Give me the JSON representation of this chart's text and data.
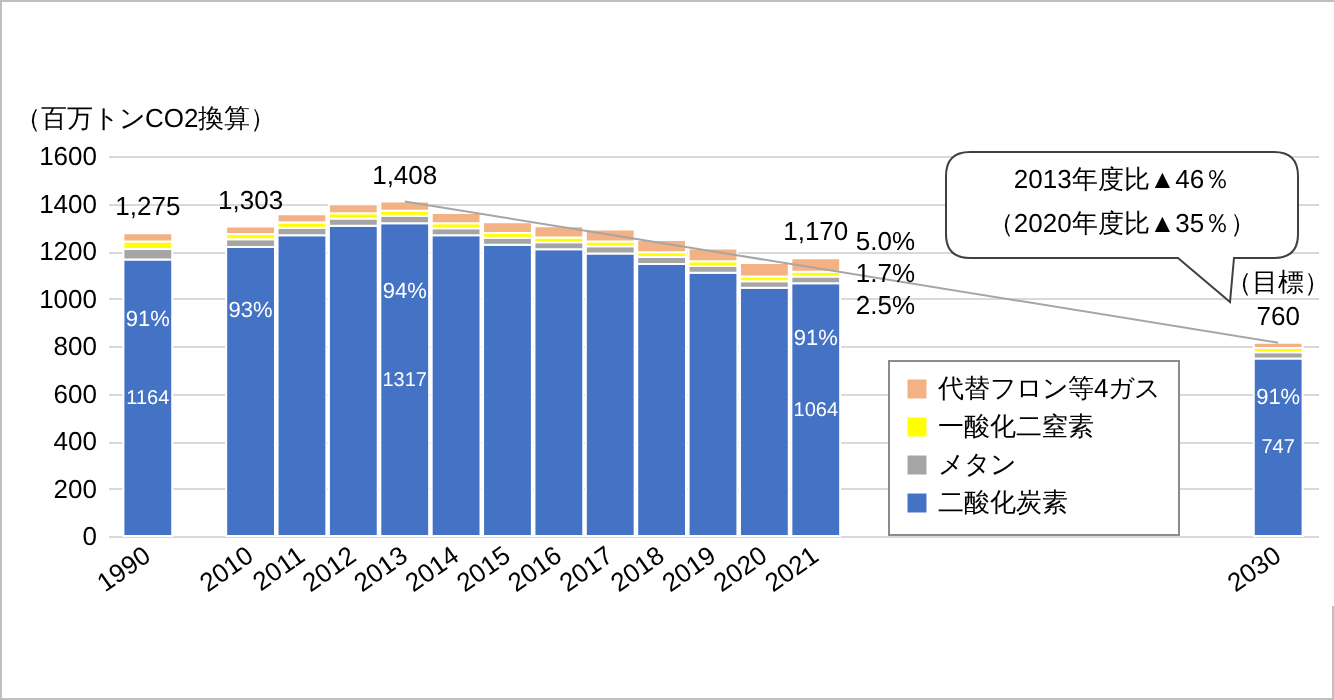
{
  "chart_data": {
    "type": "bar",
    "stacked": true,
    "ylabel": "（百万トンCO2換算）",
    "categories": [
      "1990",
      null,
      "2010",
      "2011",
      "2012",
      "2013",
      "2014",
      "2015",
      "2016",
      "2017",
      "2018",
      "2019",
      "2020",
      "2021",
      null,
      null,
      null,
      null,
      null,
      null,
      null,
      null,
      "2030"
    ],
    "series": [
      {
        "name": "二酸化炭素",
        "color": "#4472c4",
        "values": [
          1164,
          null,
          1217,
          1266,
          1306,
          1317,
          1266,
          1226,
          1207,
          1190,
          1145,
          1108,
          1045,
          1064,
          null,
          null,
          null,
          null,
          null,
          null,
          null,
          null,
          747
        ],
        "value_labels": [
          "1164",
          null,
          null,
          null,
          null,
          "1317",
          null,
          null,
          null,
          null,
          null,
          null,
          null,
          "1064",
          null,
          null,
          null,
          null,
          null,
          null,
          null,
          null,
          "747"
        ]
      },
      {
        "name": "メタン",
        "color": "#a5a5a5",
        "values": [
          44,
          null,
          33,
          32,
          31,
          31,
          30,
          30,
          30,
          30,
          30,
          29,
          28,
          29,
          null,
          null,
          null,
          null,
          null,
          null,
          null,
          null,
          27
        ]
      },
      {
        "name": "一酸化二窒素",
        "color": "#ffff00",
        "values": [
          32,
          null,
          22,
          22,
          22,
          21,
          21,
          20,
          20,
          20,
          20,
          20,
          20,
          20,
          null,
          null,
          null,
          null,
          null,
          null,
          null,
          null,
          18
        ]
      },
      {
        "name": "代替フロン等4ガス",
        "color": "#f4b183",
        "values": [
          35,
          null,
          31,
          35,
          38,
          39,
          43,
          45,
          47,
          51,
          51,
          54,
          56,
          57,
          null,
          null,
          null,
          null,
          null,
          null,
          null,
          null,
          22
        ]
      },
      {
        "type": "line",
        "color": "#a6a6a6",
        "values": [
          null,
          null,
          null,
          null,
          null,
          1408,
          null,
          null,
          null,
          null,
          null,
          null,
          null,
          null,
          null,
          null,
          null,
          null,
          null,
          null,
          null,
          null,
          814
        ]
      }
    ],
    "totals": [
      "1,275",
      null,
      "1,303",
      null,
      null,
      "1,408",
      null,
      null,
      null,
      null,
      null,
      null,
      null,
      "1,170",
      null,
      null,
      null,
      null,
      null,
      null,
      null,
      null,
      null
    ],
    "ylim": [
      0,
      1600
    ],
    "yticks": [
      0,
      200,
      400,
      600,
      800,
      1000,
      1200,
      1400,
      1600
    ],
    "grid": "y",
    "legend": "bottom right",
    "annotations": [
      "2013年度比▲46％",
      "（2020年度比▲35％）",
      {
        "text": "91%",
        "x": "1990",
        "y": 1164
      },
      {
        "text": "93%",
        "x": "2010",
        "y": 1217
      },
      {
        "text": "94%",
        "x": "2013",
        "y": 1317
      },
      {
        "text": "91%",
        "x": "2021",
        "y": 1064
      },
      {
        "text": "91%",
        "x": "2030",
        "y": 747
      },
      {
        "text": "5.0%",
        "x": "2021",
        "y": 1141
      },
      {
        "text": "1.7%",
        "x": "2021",
        "y": 1103
      },
      {
        "text": "2.5%",
        "x": "2021",
        "y": 1078
      },
      {
        "text": "760",
        "x": "2030",
        "y": 814
      },
      {
        "text": "（目標）",
        "x": "2030",
        "y": 814
      }
    ]
  }
}
